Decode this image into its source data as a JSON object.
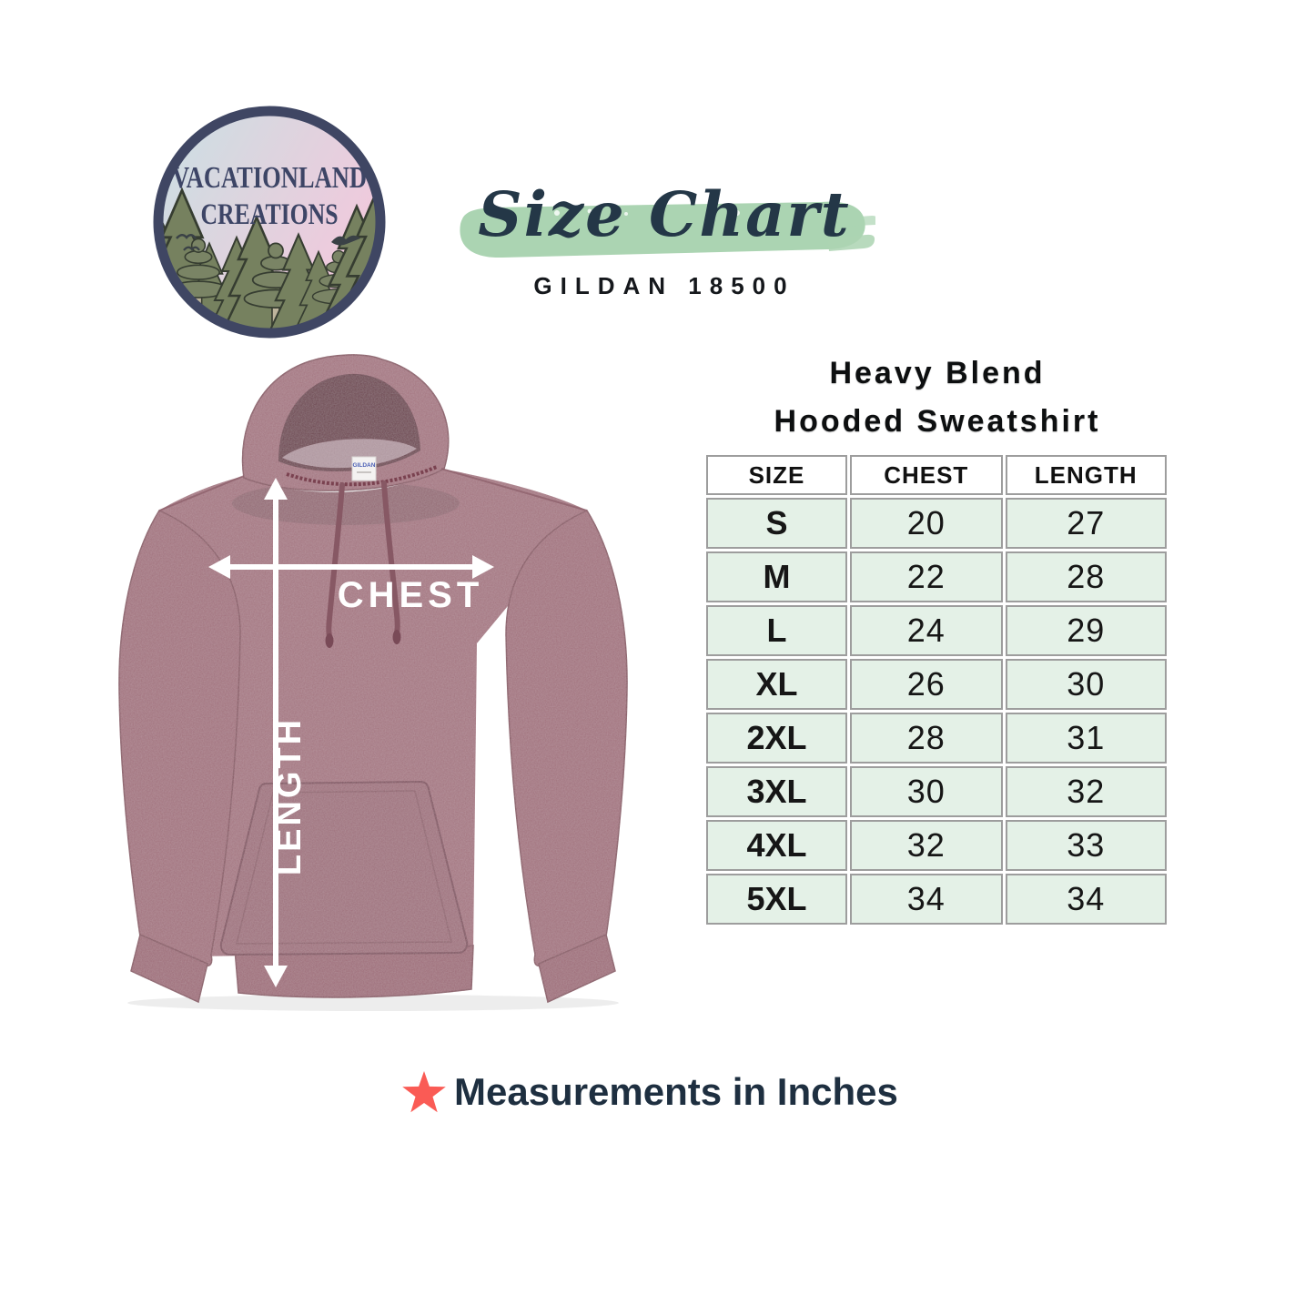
{
  "logo": {
    "line1": "VACATIONLAND",
    "line2": "CREATIONS"
  },
  "header": {
    "title": "Size Chart",
    "subtitle": "GILDAN 18500"
  },
  "product_heading": {
    "line1": "Heavy Blend",
    "line2": "Hooded Sweatshirt"
  },
  "hoodie_diagram": {
    "chest_label": "CHEST",
    "length_label": "LENGTH",
    "neck_tag": "GILDAN"
  },
  "size_table": {
    "columns": [
      "SIZE",
      "CHEST",
      "LENGTH"
    ],
    "rows": [
      [
        "S",
        "20",
        "27"
      ],
      [
        "M",
        "22",
        "28"
      ],
      [
        "L",
        "24",
        "29"
      ],
      [
        "XL",
        "26",
        "30"
      ],
      [
        "2XL",
        "28",
        "31"
      ],
      [
        "3XL",
        "30",
        "32"
      ],
      [
        "4XL",
        "32",
        "33"
      ],
      [
        "5XL",
        "34",
        "34"
      ]
    ]
  },
  "footer": {
    "note": "Measurements in Inches"
  },
  "colors": {
    "brush_green": "#abd4b2",
    "table_row_green": "#e4f1e7",
    "table_border": "#9d9d9d",
    "star_red": "#fa5b55",
    "navy_text": "#1e2f40",
    "script_navy": "#243747",
    "hoodie_maroon": "#a3737f",
    "logo_border_navy": "#3f4663"
  },
  "chart_data": {
    "type": "table",
    "title": "Size Chart — Gildan 18500 Heavy Blend Hooded Sweatshirt",
    "units": "inches",
    "columns": [
      "SIZE",
      "CHEST",
      "LENGTH"
    ],
    "rows": [
      {
        "size": "S",
        "chest": 20,
        "length": 27
      },
      {
        "size": "M",
        "chest": 22,
        "length": 28
      },
      {
        "size": "L",
        "chest": 24,
        "length": 29
      },
      {
        "size": "XL",
        "chest": 26,
        "length": 30
      },
      {
        "size": "2XL",
        "chest": 28,
        "length": 31
      },
      {
        "size": "3XL",
        "chest": 30,
        "length": 32
      },
      {
        "size": "4XL",
        "chest": 32,
        "length": 33
      },
      {
        "size": "5XL",
        "chest": 34,
        "length": 34
      }
    ]
  }
}
